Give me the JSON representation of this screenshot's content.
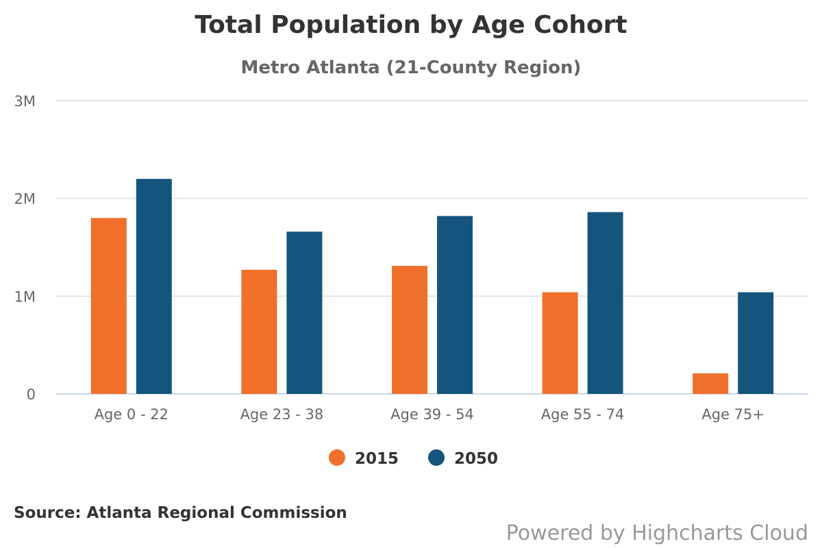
{
  "title": "Total Population by Age Cohort",
  "subtitle": "Metro Atlanta (21-County Region)",
  "source": "Source: Atlanta Regional Commission",
  "credits": "Powered by Highcharts Cloud",
  "colors": {
    "2015": "#f0702b",
    "2050": "#15557d"
  },
  "chart_data": {
    "type": "bar",
    "title": "Total Population by Age Cohort",
    "subtitle": "Metro Atlanta (21-County Region)",
    "xlabel": "",
    "ylabel": "",
    "ylim": [
      0,
      3000000
    ],
    "yticks": [
      0,
      1000000,
      2000000,
      3000000
    ],
    "ytick_labels": [
      "0",
      "1M",
      "2M",
      "3M"
    ],
    "grid": true,
    "legend": "bottom-center",
    "categories": [
      "Age 0 - 22",
      "Age 23 - 38",
      "Age 39 - 54",
      "Age 55 - 74",
      "Age 75+"
    ],
    "series": [
      {
        "name": "2015",
        "color": "#f0702b",
        "values": [
          1800000,
          1270000,
          1310000,
          1040000,
          210000
        ]
      },
      {
        "name": "2050",
        "color": "#15557d",
        "values": [
          2200000,
          1660000,
          1820000,
          1860000,
          1040000
        ]
      }
    ]
  }
}
